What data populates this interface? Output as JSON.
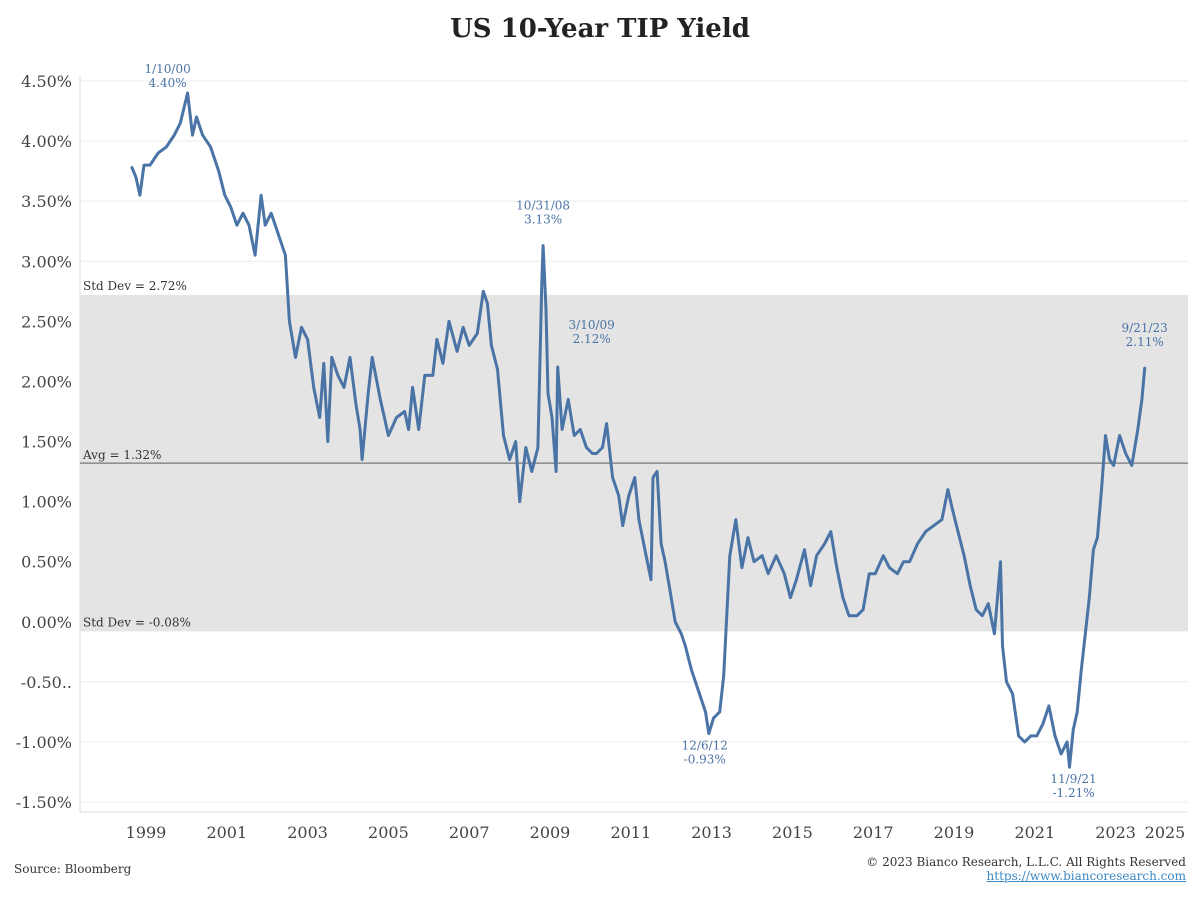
{
  "chart_data": {
    "type": "line",
    "title": "US 10-Year TIP Yield",
    "xlabel": "",
    "ylabel": "",
    "x_ticks": [
      "1999",
      "2001",
      "2003",
      "2005",
      "2007",
      "2009",
      "2011",
      "2013",
      "2015",
      "2017",
      "2019",
      "2021",
      "2023",
      "2025"
    ],
    "y_ticks": [
      "4.50%",
      "4.00%",
      "3.50%",
      "3.00%",
      "2.50%",
      "2.00%",
      "1.50%",
      "1.00%",
      "0.50%",
      "0.00%",
      "-0.50..",
      "-1.00%",
      "-1.50%"
    ],
    "ylim": [
      -1.5,
      4.5
    ],
    "grid": true,
    "color": "#4a73a6",
    "band": {
      "upper": 2.72,
      "lower": -0.08,
      "upper_label": "Std Dev = 2.72%",
      "lower_label": "Std Dev = -0.08%"
    },
    "average": {
      "value": 1.32,
      "label": "Avg = 1.32%"
    },
    "annotations": [
      {
        "date": "1/10/00",
        "value": "4.40%",
        "x": 2000.03,
        "y": 4.4
      },
      {
        "date": "10/31/08",
        "value": "3.13%",
        "x": 2008.83,
        "y": 3.13
      },
      {
        "date": "3/10/09",
        "value": "2.12%",
        "x": 2009.19,
        "y": 2.12
      },
      {
        "date": "12/6/12",
        "value": "-0.93%",
        "x": 2012.93,
        "y": -0.93
      },
      {
        "date": "11/9/21",
        "value": "-1.21%",
        "x": 2021.86,
        "y": -1.21
      },
      {
        "date": "9/21/23",
        "value": "2.11%",
        "x": 2023.72,
        "y": 2.11
      }
    ],
    "series": [
      {
        "points": [
          [
            1998.65,
            3.78
          ],
          [
            1998.75,
            3.7
          ],
          [
            1998.85,
            3.55
          ],
          [
            1998.95,
            3.8
          ],
          [
            1999.1,
            3.8
          ],
          [
            1999.3,
            3.9
          ],
          [
            1999.5,
            3.95
          ],
          [
            1999.7,
            4.05
          ],
          [
            1999.85,
            4.15
          ],
          [
            2000.03,
            4.4
          ],
          [
            2000.15,
            4.05
          ],
          [
            2000.25,
            4.2
          ],
          [
            2000.4,
            4.05
          ],
          [
            2000.6,
            3.95
          ],
          [
            2000.8,
            3.75
          ],
          [
            2000.95,
            3.55
          ],
          [
            2001.1,
            3.45
          ],
          [
            2001.25,
            3.3
          ],
          [
            2001.4,
            3.4
          ],
          [
            2001.55,
            3.3
          ],
          [
            2001.7,
            3.05
          ],
          [
            2001.85,
            3.55
          ],
          [
            2001.95,
            3.3
          ],
          [
            2002.1,
            3.4
          ],
          [
            2002.3,
            3.2
          ],
          [
            2002.45,
            3.05
          ],
          [
            2002.55,
            2.5
          ],
          [
            2002.7,
            2.2
          ],
          [
            2002.85,
            2.45
          ],
          [
            2003.0,
            2.35
          ],
          [
            2003.15,
            1.95
          ],
          [
            2003.3,
            1.7
          ],
          [
            2003.4,
            2.15
          ],
          [
            2003.5,
            1.5
          ],
          [
            2003.6,
            2.2
          ],
          [
            2003.75,
            2.05
          ],
          [
            2003.9,
            1.95
          ],
          [
            2004.05,
            2.2
          ],
          [
            2004.2,
            1.8
          ],
          [
            2004.3,
            1.6
          ],
          [
            2004.35,
            1.35
          ],
          [
            2004.5,
            1.9
          ],
          [
            2004.6,
            2.2
          ],
          [
            2004.8,
            1.85
          ],
          [
            2004.9,
            1.7
          ],
          [
            2005.0,
            1.55
          ],
          [
            2005.2,
            1.7
          ],
          [
            2005.4,
            1.75
          ],
          [
            2005.5,
            1.6
          ],
          [
            2005.6,
            1.95
          ],
          [
            2005.75,
            1.6
          ],
          [
            2005.9,
            2.05
          ],
          [
            2006.1,
            2.05
          ],
          [
            2006.2,
            2.35
          ],
          [
            2006.35,
            2.15
          ],
          [
            2006.5,
            2.5
          ],
          [
            2006.7,
            2.25
          ],
          [
            2006.85,
            2.45
          ],
          [
            2007.0,
            2.3
          ],
          [
            2007.2,
            2.4
          ],
          [
            2007.35,
            2.75
          ],
          [
            2007.45,
            2.65
          ],
          [
            2007.55,
            2.3
          ],
          [
            2007.7,
            2.1
          ],
          [
            2007.85,
            1.55
          ],
          [
            2008.0,
            1.35
          ],
          [
            2008.15,
            1.5
          ],
          [
            2008.25,
            1.0
          ],
          [
            2008.4,
            1.45
          ],
          [
            2008.55,
            1.25
          ],
          [
            2008.7,
            1.45
          ],
          [
            2008.8,
            2.85
          ],
          [
            2008.83,
            3.13
          ],
          [
            2008.9,
            2.6
          ],
          [
            2008.95,
            1.9
          ],
          [
            2009.05,
            1.7
          ],
          [
            2009.15,
            1.25
          ],
          [
            2009.19,
            2.12
          ],
          [
            2009.3,
            1.6
          ],
          [
            2009.45,
            1.85
          ],
          [
            2009.6,
            1.55
          ],
          [
            2009.75,
            1.6
          ],
          [
            2009.9,
            1.45
          ],
          [
            2010.05,
            1.4
          ],
          [
            2010.15,
            1.4
          ],
          [
            2010.3,
            1.45
          ],
          [
            2010.4,
            1.65
          ],
          [
            2010.55,
            1.2
          ],
          [
            2010.7,
            1.05
          ],
          [
            2010.8,
            0.8
          ],
          [
            2010.95,
            1.05
          ],
          [
            2011.1,
            1.2
          ],
          [
            2011.2,
            0.85
          ],
          [
            2011.35,
            0.6
          ],
          [
            2011.5,
            0.35
          ],
          [
            2011.55,
            1.2
          ],
          [
            2011.65,
            1.25
          ],
          [
            2011.75,
            0.65
          ],
          [
            2011.85,
            0.5
          ],
          [
            2011.95,
            0.3
          ],
          [
            2012.1,
            0.0
          ],
          [
            2012.25,
            -0.1
          ],
          [
            2012.35,
            -0.2
          ],
          [
            2012.5,
            -0.4
          ],
          [
            2012.7,
            -0.6
          ],
          [
            2012.85,
            -0.75
          ],
          [
            2012.93,
            -0.93
          ],
          [
            2013.05,
            -0.8
          ],
          [
            2013.2,
            -0.75
          ],
          [
            2013.3,
            -0.45
          ],
          [
            2013.45,
            0.55
          ],
          [
            2013.6,
            0.85
          ],
          [
            2013.75,
            0.45
          ],
          [
            2013.9,
            0.7
          ],
          [
            2014.05,
            0.5
          ],
          [
            2014.25,
            0.55
          ],
          [
            2014.4,
            0.4
          ],
          [
            2014.6,
            0.55
          ],
          [
            2014.8,
            0.4
          ],
          [
            2014.95,
            0.2
          ],
          [
            2015.1,
            0.35
          ],
          [
            2015.3,
            0.6
          ],
          [
            2015.45,
            0.3
          ],
          [
            2015.6,
            0.55
          ],
          [
            2015.8,
            0.65
          ],
          [
            2015.95,
            0.75
          ],
          [
            2016.1,
            0.45
          ],
          [
            2016.25,
            0.2
          ],
          [
            2016.4,
            0.05
          ],
          [
            2016.6,
            0.05
          ],
          [
            2016.75,
            0.1
          ],
          [
            2016.9,
            0.4
          ],
          [
            2017.05,
            0.4
          ],
          [
            2017.25,
            0.55
          ],
          [
            2017.4,
            0.45
          ],
          [
            2017.6,
            0.4
          ],
          [
            2017.75,
            0.5
          ],
          [
            2017.9,
            0.5
          ],
          [
            2018.1,
            0.65
          ],
          [
            2018.3,
            0.75
          ],
          [
            2018.5,
            0.8
          ],
          [
            2018.7,
            0.85
          ],
          [
            2018.85,
            1.1
          ],
          [
            2018.95,
            0.95
          ],
          [
            2019.1,
            0.75
          ],
          [
            2019.25,
            0.55
          ],
          [
            2019.4,
            0.3
          ],
          [
            2019.55,
            0.1
          ],
          [
            2019.7,
            0.05
          ],
          [
            2019.85,
            0.15
          ],
          [
            2020.0,
            -0.1
          ],
          [
            2020.15,
            0.5
          ],
          [
            2020.2,
            -0.2
          ],
          [
            2020.3,
            -0.5
          ],
          [
            2020.45,
            -0.6
          ],
          [
            2020.6,
            -0.95
          ],
          [
            2020.75,
            -1.0
          ],
          [
            2020.9,
            -0.95
          ],
          [
            2021.05,
            -0.95
          ],
          [
            2021.2,
            -0.85
          ],
          [
            2021.35,
            -0.7
          ],
          [
            2021.5,
            -0.95
          ],
          [
            2021.65,
            -1.1
          ],
          [
            2021.8,
            -1.0
          ],
          [
            2021.86,
            -1.21
          ],
          [
            2021.95,
            -0.9
          ],
          [
            2022.05,
            -0.75
          ],
          [
            2022.15,
            -0.4
          ],
          [
            2022.25,
            -0.1
          ],
          [
            2022.35,
            0.2
          ],
          [
            2022.45,
            0.6
          ],
          [
            2022.55,
            0.7
          ],
          [
            2022.65,
            1.1
          ],
          [
            2022.75,
            1.55
          ],
          [
            2022.85,
            1.35
          ],
          [
            2022.95,
            1.3
          ],
          [
            2023.1,
            1.55
          ],
          [
            2023.25,
            1.4
          ],
          [
            2023.4,
            1.3
          ],
          [
            2023.55,
            1.6
          ],
          [
            2023.65,
            1.85
          ],
          [
            2023.72,
            2.11
          ]
        ]
      }
    ]
  },
  "footer": {
    "source": "Source: Bloomberg",
    "copyright": "© 2023 Bianco Research, L.L.C. All Rights Reserved",
    "url": "https://www.biancoresearch.com"
  }
}
